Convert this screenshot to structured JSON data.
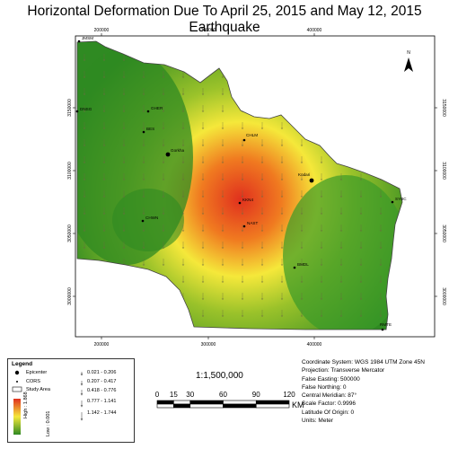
{
  "title": "Horizontal Deformation Due To April 25, 2015 and May 12, 2015 Earthquake",
  "map": {
    "x_ticks": [
      "200000",
      "300000",
      "400000"
    ],
    "y_ticks": [
      "3150000",
      "3100000",
      "3050000",
      "3000000"
    ],
    "north_label": "N",
    "stations": [
      {
        "name": "JMSM",
        "kind": "cors"
      },
      {
        "name": "DNSG",
        "kind": "cors"
      },
      {
        "name": "GHER",
        "kind": "cors"
      },
      {
        "name": "BES",
        "kind": "cors"
      },
      {
        "name": "Gorkha",
        "kind": "epicenter"
      },
      {
        "name": "CHLM",
        "kind": "cors"
      },
      {
        "name": "Kodari",
        "kind": "epicenter"
      },
      {
        "name": "KKN4",
        "kind": "cors"
      },
      {
        "name": "NAST",
        "kind": "cors"
      },
      {
        "name": "SYBC",
        "kind": "cors"
      },
      {
        "name": "CHWN",
        "kind": "cors"
      },
      {
        "name": "BMDL",
        "kind": "cors"
      },
      {
        "name": "RMTE",
        "kind": "cors"
      }
    ],
    "colors": {
      "high": "#e0301e",
      "mid": "#f5e83a",
      "low": "#2f8a22"
    }
  },
  "legend": {
    "title": "Legend",
    "epicenter": "Epicenter",
    "cors": "CORS",
    "study_area": "Study Area",
    "ramp_high": "High : 1.868",
    "ramp_low": "Low : 0.001",
    "classes": [
      "0.021 - 0.206",
      "0.207 - 0.417",
      "0.418 - 0.776",
      "0.777 - 1.141",
      "1.142 - 1.744"
    ]
  },
  "scale": {
    "ratio": "1:1,500,000",
    "ticks": [
      "0",
      "15",
      "30",
      "60",
      "90",
      "120"
    ],
    "unit": "KM"
  },
  "coordinate_info": [
    "Coordinate System: WGS 1984 UTM Zone 45N",
    "Projection: Transverse Mercator",
    "False Easting: 500000",
    "False Northing: 0",
    "Central Meridian: 87°",
    "Scale Factor: 0.9996",
    "Latitude Of Origin: 0",
    "Units: Meter"
  ]
}
